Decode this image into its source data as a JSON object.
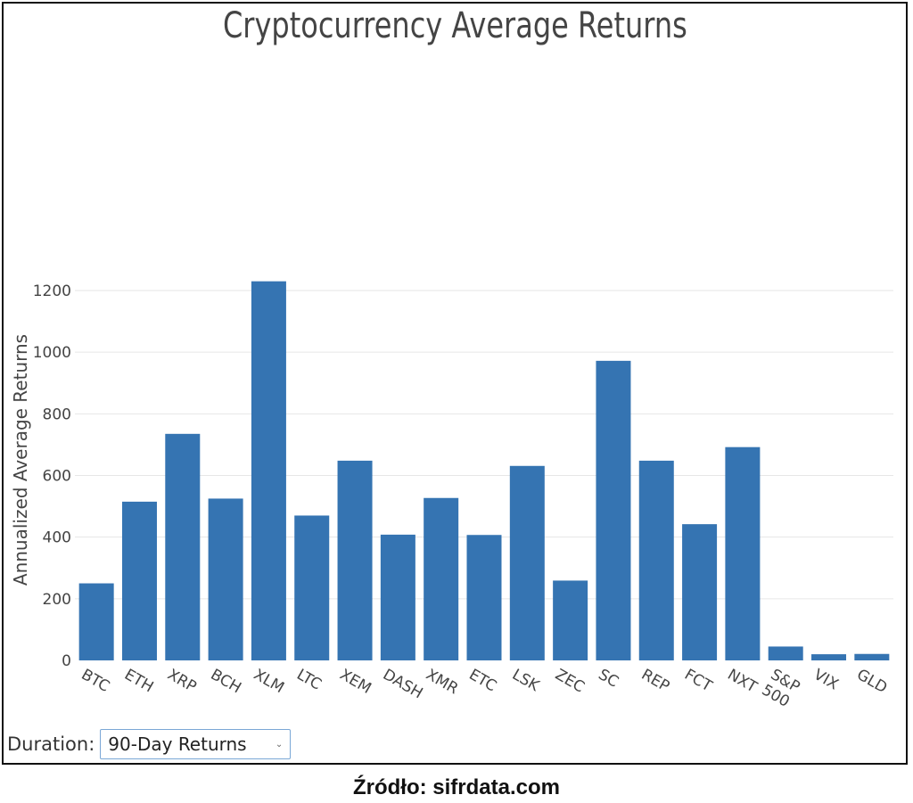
{
  "chart_data": {
    "type": "bar",
    "title": "Cryptocurrency Average Returns",
    "ylabel": "Annualized Average Returns",
    "xlabel": "",
    "categories": [
      "BTC",
      "ETH",
      "XRP",
      "BCH",
      "XLM",
      "LTC",
      "XEM",
      "DASH",
      "XMR",
      "ETC",
      "LSK",
      "ZEC",
      "SC",
      "REP",
      "FCT",
      "NXT",
      "S&P 500",
      "VIX",
      "GLD"
    ],
    "values": [
      250,
      515,
      735,
      525,
      1230,
      470,
      648,
      408,
      527,
      407,
      631,
      259,
      972,
      648,
      442,
      692,
      45,
      20,
      21
    ],
    "ylim": [
      0,
      1200
    ],
    "yticks": [
      0,
      200,
      400,
      600,
      800,
      1000,
      1200
    ],
    "grid": true,
    "bar_color": "#3574b2"
  },
  "controls": {
    "duration_label": "Duration:",
    "duration_value": "90-Day Returns"
  },
  "footer": {
    "source": "Źródło: sifrdata.com"
  },
  "icons": {
    "dropdown": "chevron-down-icon"
  }
}
